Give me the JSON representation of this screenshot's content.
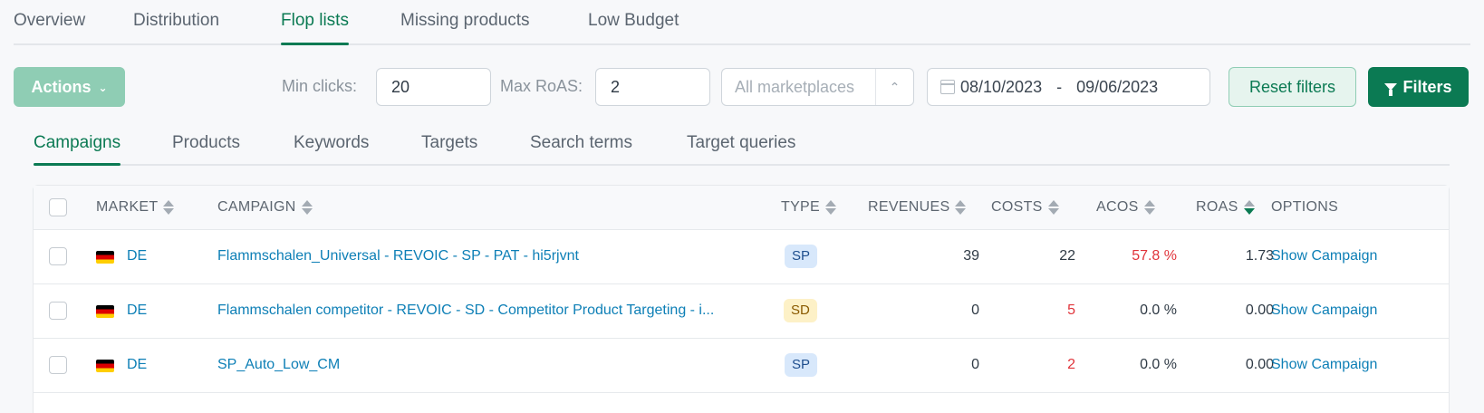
{
  "top_tabs": [
    {
      "label": "Overview"
    },
    {
      "label": "Distribution"
    },
    {
      "label": "Flop lists",
      "active": true
    },
    {
      "label": "Missing products"
    },
    {
      "label": "Low Budget"
    }
  ],
  "toolbar": {
    "actions_label": "Actions",
    "min_clicks_label": "Min clicks:",
    "min_clicks_value": "20",
    "max_roas_label": "Max RoAS:",
    "max_roas_value": "2",
    "marketplace_placeholder": "All marketplaces",
    "date_from": "08/10/2023",
    "date_sep": "-",
    "date_to": "09/06/2023",
    "reset_label": "Reset filters",
    "filters_label": "Filters"
  },
  "sub_tabs": [
    {
      "label": "Campaigns",
      "active": true
    },
    {
      "label": "Products"
    },
    {
      "label": "Keywords"
    },
    {
      "label": "Targets"
    },
    {
      "label": "Search terms"
    },
    {
      "label": "Target queries"
    }
  ],
  "table": {
    "columns": {
      "market": "MARKET",
      "campaign": "CAMPAIGN",
      "type": "TYPE",
      "revenues": "REVENUES",
      "costs": "COSTS",
      "acos": "ACOS",
      "roas": "ROAS",
      "options": "OPTIONS"
    },
    "rows": [
      {
        "market": "DE",
        "campaign": "Flammschalen_Universal - REVOIC - SP - PAT - hi5rjvnt",
        "type": "SP",
        "revenues": "39",
        "costs": "22",
        "acos": "57.8 %",
        "roas": "1.73",
        "option": "Show Campaign"
      },
      {
        "market": "DE",
        "campaign": "Flammschalen competitor - REVOIC - SD - Competitor Product Targeting - i...",
        "type": "SD",
        "revenues": "0",
        "costs": "5",
        "acos": "0.0 %",
        "roas": "0.00",
        "option": "Show Campaign"
      },
      {
        "market": "DE",
        "campaign": "SP_Auto_Low_CM",
        "type": "SP",
        "revenues": "0",
        "costs": "2",
        "acos": "0.0 %",
        "roas": "0.00",
        "option": "Show Campaign"
      }
    ]
  },
  "colors": {
    "accent": "#0b7a53",
    "link": "#0d7fb6",
    "negative": "#e0343b",
    "sp_badge": "#d8e8fb",
    "sd_badge": "#fdf1c7"
  }
}
